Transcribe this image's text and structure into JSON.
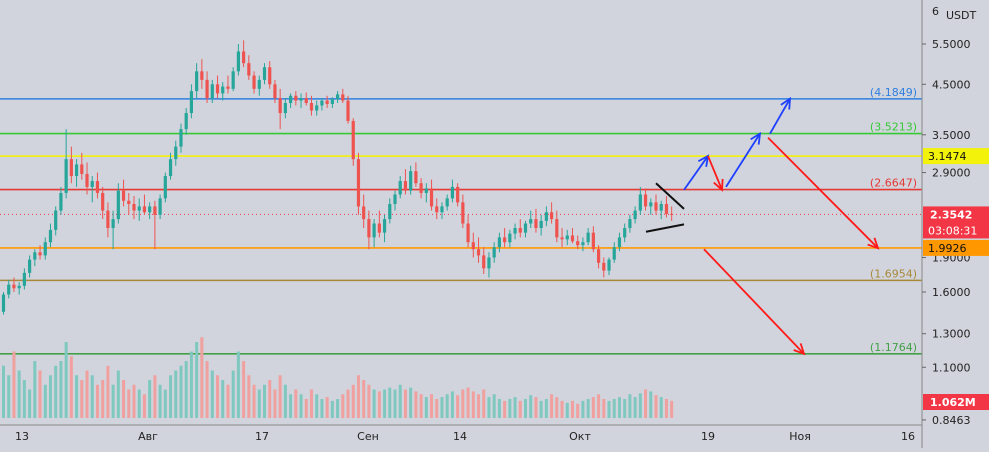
{
  "chart_data": {
    "type": "candlestick",
    "price_axis": {
      "scale": "log",
      "currency_label": "USDT",
      "top_label": "6",
      "ticks": [
        "5.5000",
        "4.5000",
        "3.5000",
        "2.9000",
        "1.9000",
        "1.6000",
        "1.3000",
        "1.1000",
        "0.8463"
      ]
    },
    "time_axis": {
      "labels": [
        "13",
        "Авг",
        "17",
        "Сен",
        "14",
        "Окт",
        "19",
        "Ноя",
        "16"
      ]
    },
    "levels": [
      {
        "value": 4.1849,
        "label": "(4.1849)",
        "color": "#2f7fe0"
      },
      {
        "value": 3.5213,
        "label": "(3.5213)",
        "color": "#35c935"
      },
      {
        "value": 3.1474,
        "label": "3.1474",
        "color": "#f2f20a",
        "badge": true
      },
      {
        "value": 2.6647,
        "label": "(2.6647)",
        "color": "#e53935"
      },
      {
        "value": 1.9926,
        "label": "1.9926",
        "color": "#ff9800",
        "badge": true
      },
      {
        "value": 1.6954,
        "label": "(1.6954)",
        "color": "#a8893a"
      },
      {
        "value": 1.1764,
        "label": "(1.1764)",
        "color": "#43a047"
      }
    ],
    "current_price": {
      "value": 2.3542,
      "label": "2.3542",
      "countdown": "03:08:31",
      "color": "#f23645"
    },
    "volume": {
      "label": "1.062M",
      "color": "#f23645"
    },
    "colors": {
      "up": "#26a69a",
      "down": "#ef5350",
      "forecast_up": "#1e40ff",
      "forecast_down": "#ff1a1a"
    },
    "candles": [
      [
        1.45,
        1.6,
        1.43,
        1.58
      ],
      [
        1.58,
        1.7,
        1.55,
        1.66
      ],
      [
        1.66,
        1.72,
        1.6,
        1.63
      ],
      [
        1.63,
        1.68,
        1.58,
        1.65
      ],
      [
        1.65,
        1.8,
        1.62,
        1.76
      ],
      [
        1.76,
        1.92,
        1.72,
        1.88
      ],
      [
        1.88,
        1.98,
        1.82,
        1.95
      ],
      [
        1.95,
        2.02,
        1.88,
        1.92
      ],
      [
        1.92,
        2.1,
        1.88,
        2.05
      ],
      [
        2.05,
        2.25,
        2.0,
        2.18
      ],
      [
        2.18,
        2.45,
        2.12,
        2.4
      ],
      [
        2.4,
        2.7,
        2.35,
        2.62
      ],
      [
        2.62,
        3.6,
        2.55,
        3.1
      ],
      [
        3.1,
        3.3,
        2.75,
        2.85
      ],
      [
        2.85,
        3.1,
        2.7,
        3.02
      ],
      [
        3.02,
        3.2,
        2.8,
        2.88
      ],
      [
        2.88,
        3.05,
        2.6,
        2.7
      ],
      [
        2.7,
        2.85,
        2.5,
        2.78
      ],
      [
        2.78,
        2.9,
        2.55,
        2.62
      ],
      [
        2.62,
        2.7,
        2.3,
        2.4
      ],
      [
        2.4,
        2.5,
        2.1,
        2.2
      ],
      [
        2.2,
        2.4,
        1.98,
        2.3
      ],
      [
        2.3,
        2.75,
        2.25,
        2.65
      ],
      [
        2.65,
        2.8,
        2.45,
        2.52
      ],
      [
        2.52,
        2.62,
        2.35,
        2.48
      ],
      [
        2.48,
        2.58,
        2.3,
        2.4
      ],
      [
        2.4,
        2.55,
        2.28,
        2.45
      ],
      [
        2.45,
        2.6,
        2.35,
        2.38
      ],
      [
        2.38,
        2.5,
        2.3,
        2.45
      ],
      [
        2.45,
        2.52,
        1.98,
        2.35
      ],
      [
        2.35,
        2.6,
        2.3,
        2.55
      ],
      [
        2.55,
        2.9,
        2.5,
        2.85
      ],
      [
        2.85,
        3.2,
        2.8,
        3.1
      ],
      [
        3.1,
        3.4,
        3.0,
        3.3
      ],
      [
        3.3,
        3.7,
        3.2,
        3.6
      ],
      [
        3.6,
        4.0,
        3.5,
        3.9
      ],
      [
        3.9,
        4.5,
        3.8,
        4.35
      ],
      [
        4.35,
        5.0,
        4.2,
        4.8
      ],
      [
        4.8,
        5.1,
        4.4,
        4.6
      ],
      [
        4.6,
        4.8,
        4.1,
        4.2
      ],
      [
        4.2,
        4.6,
        4.1,
        4.5
      ],
      [
        4.5,
        4.7,
        4.2,
        4.3
      ],
      [
        4.3,
        4.55,
        4.15,
        4.45
      ],
      [
        4.45,
        4.7,
        4.3,
        4.4
      ],
      [
        4.4,
        4.9,
        4.35,
        4.8
      ],
      [
        4.8,
        5.5,
        4.7,
        5.3
      ],
      [
        5.3,
        5.6,
        4.9,
        5.0
      ],
      [
        5.0,
        5.2,
        4.6,
        4.7
      ],
      [
        4.7,
        4.8,
        4.3,
        4.4
      ],
      [
        4.4,
        4.7,
        4.25,
        4.6
      ],
      [
        4.6,
        5.0,
        4.5,
        4.9
      ],
      [
        4.9,
        5.05,
        4.4,
        4.5
      ],
      [
        4.5,
        4.6,
        4.1,
        4.2
      ],
      [
        4.2,
        4.4,
        3.6,
        3.9
      ],
      [
        3.9,
        4.2,
        3.8,
        4.1
      ],
      [
        4.1,
        4.3,
        4.0,
        4.25
      ],
      [
        4.25,
        4.35,
        4.05,
        4.15
      ],
      [
        4.15,
        4.3,
        4.0,
        4.2
      ],
      [
        4.2,
        4.32,
        4.05,
        4.1
      ],
      [
        4.1,
        4.25,
        3.85,
        3.95
      ],
      [
        3.95,
        4.15,
        3.85,
        4.05
      ],
      [
        4.05,
        4.2,
        3.95,
        4.15
      ],
      [
        4.15,
        4.25,
        4.0,
        4.08
      ],
      [
        4.08,
        4.22,
        4.0,
        4.18
      ],
      [
        4.18,
        4.35,
        4.1,
        4.28
      ],
      [
        4.28,
        4.4,
        4.1,
        4.15
      ],
      [
        4.15,
        4.25,
        3.7,
        3.75
      ],
      [
        3.75,
        3.8,
        3.0,
        3.1
      ],
      [
        3.1,
        3.2,
        2.35,
        2.45
      ],
      [
        2.45,
        2.6,
        2.2,
        2.3
      ],
      [
        2.3,
        2.4,
        1.98,
        2.1
      ],
      [
        2.1,
        2.3,
        2.0,
        2.25
      ],
      [
        2.25,
        2.4,
        2.1,
        2.15
      ],
      [
        2.15,
        2.35,
        2.05,
        2.3
      ],
      [
        2.3,
        2.55,
        2.25,
        2.48
      ],
      [
        2.48,
        2.65,
        2.4,
        2.6
      ],
      [
        2.6,
        2.85,
        2.55,
        2.78
      ],
      [
        2.78,
        2.95,
        2.6,
        2.65
      ],
      [
        2.65,
        3.0,
        2.6,
        2.92
      ],
      [
        2.92,
        3.05,
        2.7,
        2.75
      ],
      [
        2.75,
        2.82,
        2.55,
        2.62
      ],
      [
        2.62,
        2.75,
        2.5,
        2.68
      ],
      [
        2.68,
        2.8,
        2.4,
        2.45
      ],
      [
        2.45,
        2.55,
        2.3,
        2.38
      ],
      [
        2.38,
        2.5,
        2.3,
        2.45
      ],
      [
        2.45,
        2.6,
        2.4,
        2.55
      ],
      [
        2.55,
        2.8,
        2.5,
        2.7
      ],
      [
        2.7,
        2.75,
        2.45,
        2.5
      ],
      [
        2.5,
        2.6,
        2.2,
        2.25
      ],
      [
        2.25,
        2.35,
        2.0,
        2.05
      ],
      [
        2.05,
        2.15,
        1.9,
        1.98
      ],
      [
        1.98,
        2.1,
        1.85,
        1.92
      ],
      [
        1.92,
        2.0,
        1.75,
        1.8
      ],
      [
        1.8,
        1.95,
        1.72,
        1.9
      ],
      [
        1.9,
        2.05,
        1.85,
        2.0
      ],
      [
        2.0,
        2.15,
        1.95,
        2.1
      ],
      [
        2.1,
        2.2,
        2.0,
        2.05
      ],
      [
        2.05,
        2.18,
        2.0,
        2.14
      ],
      [
        2.14,
        2.25,
        2.08,
        2.2
      ],
      [
        2.2,
        2.3,
        2.1,
        2.15
      ],
      [
        2.15,
        2.28,
        2.1,
        2.25
      ],
      [
        2.25,
        2.4,
        2.2,
        2.3
      ],
      [
        2.3,
        2.42,
        2.15,
        2.2
      ],
      [
        2.2,
        2.35,
        2.12,
        2.28
      ],
      [
        2.28,
        2.45,
        2.22,
        2.38
      ],
      [
        2.38,
        2.5,
        2.25,
        2.3
      ],
      [
        2.3,
        2.4,
        2.05,
        2.1
      ],
      [
        2.1,
        2.2,
        2.0,
        2.08
      ],
      [
        2.08,
        2.18,
        2.02,
        2.12
      ],
      [
        2.12,
        2.2,
        2.04,
        2.06
      ],
      [
        2.06,
        2.12,
        1.98,
        2.02
      ],
      [
        2.02,
        2.1,
        1.96,
        2.05
      ],
      [
        2.05,
        2.2,
        2.02,
        2.15
      ],
      [
        2.15,
        2.22,
        1.95,
        1.98
      ],
      [
        1.98,
        2.02,
        1.8,
        1.85
      ],
      [
        1.85,
        1.9,
        1.72,
        1.78
      ],
      [
        1.78,
        1.9,
        1.74,
        1.88
      ],
      [
        1.88,
        2.05,
        1.85,
        2.0
      ],
      [
        2.0,
        2.15,
        1.96,
        2.1
      ],
      [
        2.1,
        2.25,
        2.05,
        2.2
      ],
      [
        2.2,
        2.35,
        2.15,
        2.3
      ],
      [
        2.3,
        2.45,
        2.25,
        2.4
      ],
      [
        2.4,
        2.7,
        2.35,
        2.6
      ],
      [
        2.6,
        2.68,
        2.4,
        2.45
      ],
      [
        2.45,
        2.55,
        2.35,
        2.5
      ],
      [
        2.5,
        2.6,
        2.35,
        2.4
      ],
      [
        2.4,
        2.52,
        2.3,
        2.48
      ],
      [
        2.48,
        2.58,
        2.32,
        2.36
      ],
      [
        2.36,
        2.45,
        2.28,
        2.35
      ]
    ],
    "volumes": [
      0.55,
      0.45,
      0.7,
      0.5,
      0.4,
      0.3,
      0.6,
      0.5,
      0.35,
      0.45,
      0.55,
      0.6,
      0.8,
      0.65,
      0.45,
      0.4,
      0.5,
      0.45,
      0.35,
      0.4,
      0.55,
      0.35,
      0.5,
      0.4,
      0.3,
      0.35,
      0.3,
      0.25,
      0.4,
      0.45,
      0.35,
      0.3,
      0.45,
      0.5,
      0.55,
      0.6,
      0.7,
      0.8,
      0.85,
      0.6,
      0.5,
      0.45,
      0.4,
      0.35,
      0.5,
      0.7,
      0.6,
      0.45,
      0.35,
      0.3,
      0.35,
      0.4,
      0.3,
      0.45,
      0.35,
      0.25,
      0.3,
      0.25,
      0.2,
      0.3,
      0.25,
      0.2,
      0.22,
      0.18,
      0.2,
      0.25,
      0.3,
      0.35,
      0.45,
      0.4,
      0.35,
      0.3,
      0.28,
      0.3,
      0.32,
      0.3,
      0.35,
      0.3,
      0.32,
      0.28,
      0.25,
      0.22,
      0.25,
      0.2,
      0.22,
      0.25,
      0.28,
      0.24,
      0.3,
      0.32,
      0.28,
      0.25,
      0.3,
      0.22,
      0.25,
      0.2,
      0.18,
      0.2,
      0.22,
      0.18,
      0.2,
      0.24,
      0.22,
      0.18,
      0.2,
      0.25,
      0.22,
      0.18,
      0.16,
      0.18,
      0.15,
      0.18,
      0.2,
      0.22,
      0.25,
      0.2,
      0.18,
      0.2,
      0.22,
      0.2,
      0.25,
      0.22,
      0.26,
      0.3,
      0.28,
      0.24,
      0.22,
      0.2,
      0.18
    ]
  }
}
